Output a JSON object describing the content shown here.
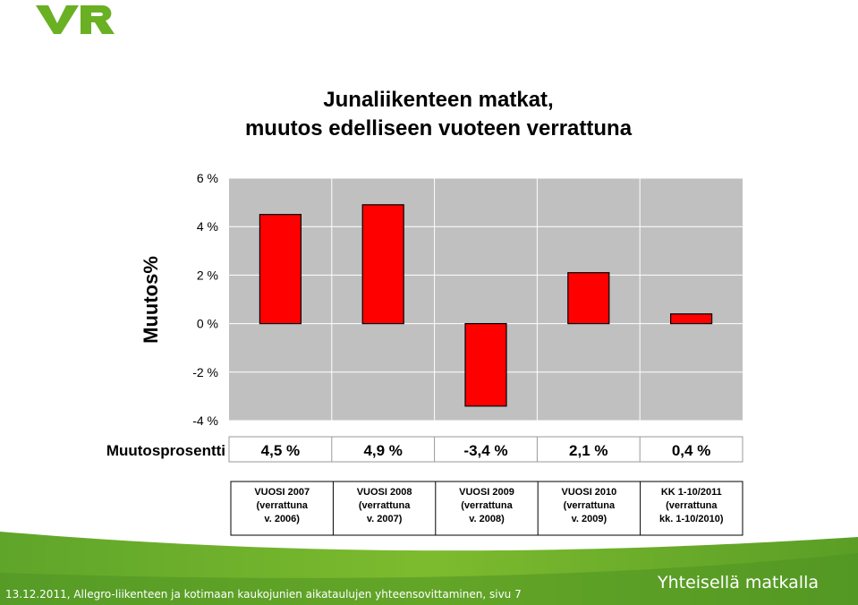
{
  "brand": {
    "logo_text": "VR",
    "logo_color": "#6ab023",
    "footer_green": "#7ab52a"
  },
  "slide": {
    "title_line1": "Junaliikenteen matkat,",
    "title_line2": "muutos edelliseen vuoteen verrattuna",
    "footer": "13.12.2011, Allegro-liikenteen ja kotimaan kaukojunien aikataulujen yhteensovittaminen, sivu 7",
    "slogan": "Yhteisellä matkalla"
  },
  "chart_data": {
    "type": "bar",
    "ylabel": "Muutos%",
    "ylim": [
      -4,
      6
    ],
    "yticks": [
      6,
      4,
      2,
      0,
      -2,
      -4
    ],
    "ytick_labels": [
      "6 %",
      "4 %",
      "2 %",
      "0 %",
      "-2 %",
      "-4 %"
    ],
    "categories": [
      [
        "VUOSI 2007",
        "(verrattuna",
        "v. 2006)"
      ],
      [
        "VUOSI 2008",
        "(verrattuna",
        "v. 2007)"
      ],
      [
        "VUOSI 2009",
        "(verrattuna",
        "v. 2008)"
      ],
      [
        "VUOSI 2010",
        "(verrattuna",
        "v. 2009)"
      ],
      [
        "KK 1-10/2011",
        "(verrattuna",
        "kk. 1-10/2010)"
      ]
    ],
    "values": [
      4.5,
      4.9,
      -3.4,
      2.1,
      0.4
    ],
    "table_row_label": "Muutosprosentti",
    "table_values": [
      "4,5 %",
      "4,9 %",
      "-3,4 %",
      "2,1 %",
      "0,4 %"
    ],
    "bar_color": "#ff0000",
    "plot_background": "#c0c0c0",
    "grid": true
  }
}
